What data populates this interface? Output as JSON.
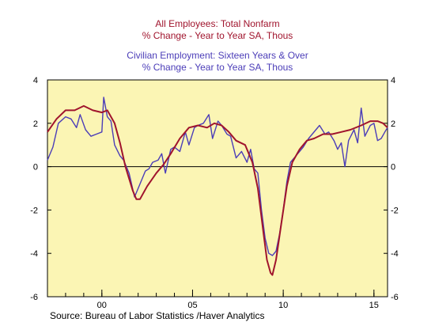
{
  "header": {
    "series1_title": "All Employees: Total Nonfarm",
    "series1_subtitle": "% Change - Year to Year    SA, Thous",
    "series2_title": "Civilian Employment: Sixteen Years & Over",
    "series2_subtitle": "% Change - Year to Year    SA, Thous"
  },
  "footer": {
    "source": "Source:  Bureau of Labor Statistics /Haver Analytics"
  },
  "colors": {
    "series1": "#a0142d",
    "series2": "#4b3db8",
    "plot_bg": "#fbf5b4",
    "zero_line": "#000000"
  },
  "chart_data": {
    "type": "line",
    "grid": false,
    "xlim": [
      1997.0,
      2015.75
    ],
    "ylim": [
      -6,
      4
    ],
    "x_ticks": [
      {
        "value": 2000,
        "label": "00"
      },
      {
        "value": 2005,
        "label": "05"
      },
      {
        "value": 2010,
        "label": "10"
      },
      {
        "value": 2015,
        "label": "15"
      }
    ],
    "y_ticks": [
      4,
      2,
      0,
      -2,
      -4,
      -6
    ],
    "reference_line_y": 0,
    "series": [
      {
        "name": "All Employees: Total Nonfarm",
        "points": [
          [
            1997.0,
            1.6
          ],
          [
            1997.5,
            2.2
          ],
          [
            1998.0,
            2.6
          ],
          [
            1998.5,
            2.6
          ],
          [
            1999.0,
            2.8
          ],
          [
            1999.5,
            2.6
          ],
          [
            2000.0,
            2.5
          ],
          [
            2000.3,
            2.6
          ],
          [
            2000.7,
            2.0
          ],
          [
            2001.0,
            1.1
          ],
          [
            2001.3,
            0.0
          ],
          [
            2001.7,
            -1.1
          ],
          [
            2001.9,
            -1.5
          ],
          [
            2002.1,
            -1.5
          ],
          [
            2002.5,
            -0.9
          ],
          [
            2003.0,
            -0.3
          ],
          [
            2003.4,
            0.1
          ],
          [
            2003.8,
            0.6
          ],
          [
            2004.3,
            1.3
          ],
          [
            2004.8,
            1.8
          ],
          [
            2005.3,
            1.9
          ],
          [
            2005.8,
            1.8
          ],
          [
            2006.2,
            2.0
          ],
          [
            2006.6,
            1.9
          ],
          [
            2007.0,
            1.6
          ],
          [
            2007.4,
            1.2
          ],
          [
            2007.9,
            1.0
          ],
          [
            2008.3,
            0.2
          ],
          [
            2008.6,
            -1.0
          ],
          [
            2008.9,
            -3.0
          ],
          [
            2009.1,
            -4.3
          ],
          [
            2009.3,
            -4.9
          ],
          [
            2009.4,
            -5.0
          ],
          [
            2009.6,
            -4.3
          ],
          [
            2009.9,
            -2.6
          ],
          [
            2010.2,
            -0.9
          ],
          [
            2010.5,
            0.2
          ],
          [
            2010.9,
            0.8
          ],
          [
            2011.3,
            1.2
          ],
          [
            2011.7,
            1.3
          ],
          [
            2012.2,
            1.5
          ],
          [
            2012.7,
            1.5
          ],
          [
            2013.2,
            1.6
          ],
          [
            2013.7,
            1.7
          ],
          [
            2014.3,
            1.9
          ],
          [
            2014.8,
            2.1
          ],
          [
            2015.2,
            2.1
          ],
          [
            2015.5,
            2.0
          ],
          [
            2015.75,
            1.8
          ]
        ]
      },
      {
        "name": "Civilian Employment: Sixteen Years & Over",
        "points": [
          [
            1997.0,
            0.3
          ],
          [
            1997.3,
            0.9
          ],
          [
            1997.6,
            2.0
          ],
          [
            1998.0,
            2.3
          ],
          [
            1998.3,
            2.2
          ],
          [
            1998.6,
            1.8
          ],
          [
            1998.8,
            2.4
          ],
          [
            1999.1,
            1.7
          ],
          [
            1999.4,
            1.4
          ],
          [
            1999.7,
            1.5
          ],
          [
            2000.0,
            1.6
          ],
          [
            2000.1,
            3.2
          ],
          [
            2000.3,
            2.3
          ],
          [
            2000.5,
            2.1
          ],
          [
            2000.7,
            1.0
          ],
          [
            2001.0,
            0.5
          ],
          [
            2001.2,
            0.3
          ],
          [
            2001.5,
            -0.3
          ],
          [
            2001.8,
            -1.4
          ],
          [
            2002.1,
            -0.8
          ],
          [
            2002.4,
            -0.2
          ],
          [
            2002.6,
            -0.1
          ],
          [
            2002.8,
            0.2
          ],
          [
            2003.1,
            0.3
          ],
          [
            2003.3,
            0.6
          ],
          [
            2003.5,
            -0.3
          ],
          [
            2003.8,
            0.8
          ],
          [
            2004.0,
            0.9
          ],
          [
            2004.3,
            0.7
          ],
          [
            2004.6,
            1.6
          ],
          [
            2004.8,
            1.0
          ],
          [
            2005.1,
            1.8
          ],
          [
            2005.3,
            1.9
          ],
          [
            2005.6,
            2.0
          ],
          [
            2005.9,
            2.4
          ],
          [
            2006.1,
            1.3
          ],
          [
            2006.4,
            2.1
          ],
          [
            2006.6,
            1.9
          ],
          [
            2006.9,
            1.5
          ],
          [
            2007.1,
            1.4
          ],
          [
            2007.4,
            0.4
          ],
          [
            2007.7,
            0.7
          ],
          [
            2008.0,
            0.2
          ],
          [
            2008.2,
            0.8
          ],
          [
            2008.4,
            -0.1
          ],
          [
            2008.6,
            -0.3
          ],
          [
            2008.8,
            -2.0
          ],
          [
            2009.0,
            -3.3
          ],
          [
            2009.2,
            -4.0
          ],
          [
            2009.4,
            -4.1
          ],
          [
            2009.6,
            -3.9
          ],
          [
            2009.8,
            -3.1
          ],
          [
            2010.0,
            -2.0
          ],
          [
            2010.2,
            -0.7
          ],
          [
            2010.4,
            0.2
          ],
          [
            2010.7,
            0.5
          ],
          [
            2010.9,
            0.7
          ],
          [
            2011.1,
            0.9
          ],
          [
            2011.4,
            1.3
          ],
          [
            2011.6,
            1.5
          ],
          [
            2011.8,
            1.7
          ],
          [
            2012.0,
            1.9
          ],
          [
            2012.3,
            1.5
          ],
          [
            2012.5,
            1.6
          ],
          [
            2012.8,
            1.2
          ],
          [
            2013.0,
            0.8
          ],
          [
            2013.2,
            1.1
          ],
          [
            2013.4,
            0.0
          ],
          [
            2013.6,
            1.2
          ],
          [
            2013.9,
            1.7
          ],
          [
            2014.1,
            1.1
          ],
          [
            2014.3,
            2.7
          ],
          [
            2014.5,
            1.4
          ],
          [
            2014.8,
            1.9
          ],
          [
            2015.0,
            2.0
          ],
          [
            2015.2,
            1.2
          ],
          [
            2015.4,
            1.3
          ],
          [
            2015.6,
            1.6
          ],
          [
            2015.75,
            1.8
          ]
        ]
      }
    ]
  }
}
